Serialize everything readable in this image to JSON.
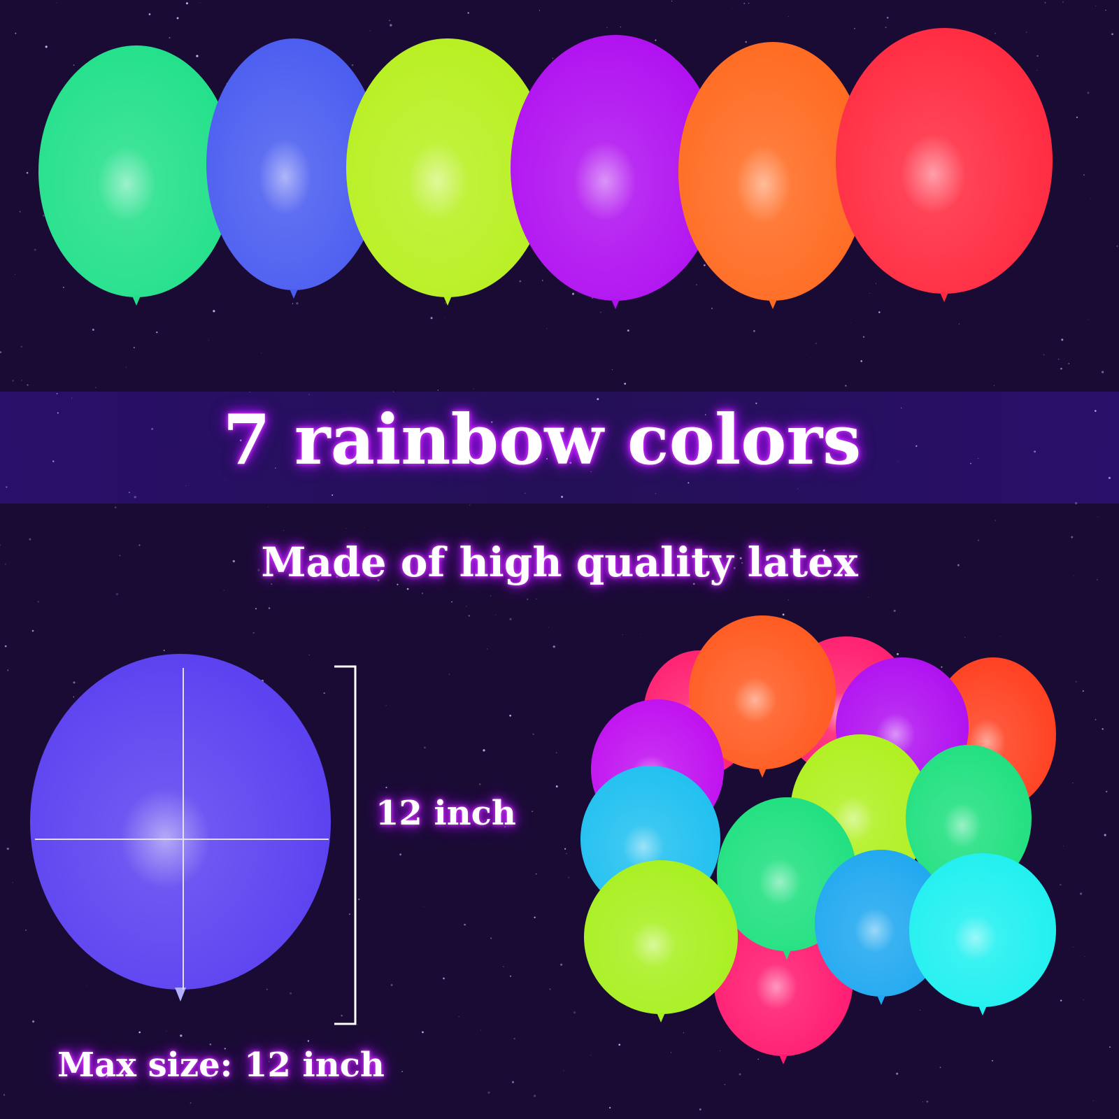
{
  "headline": "7 rainbow colors",
  "subheadline": "Made of high quality latex",
  "size_label": "12 inch",
  "max_size_label": "Max size: 12 inch",
  "colors": {
    "background": "#1a0b35",
    "band": "#2a1260",
    "glow": "#d020ff",
    "balloons_top": [
      "#22e08a",
      "#4a5cf0",
      "#b8f020",
      "#b010f0",
      "#ff6a20",
      "#ff2a40"
    ],
    "measured_balloon": "#5a40f0"
  }
}
